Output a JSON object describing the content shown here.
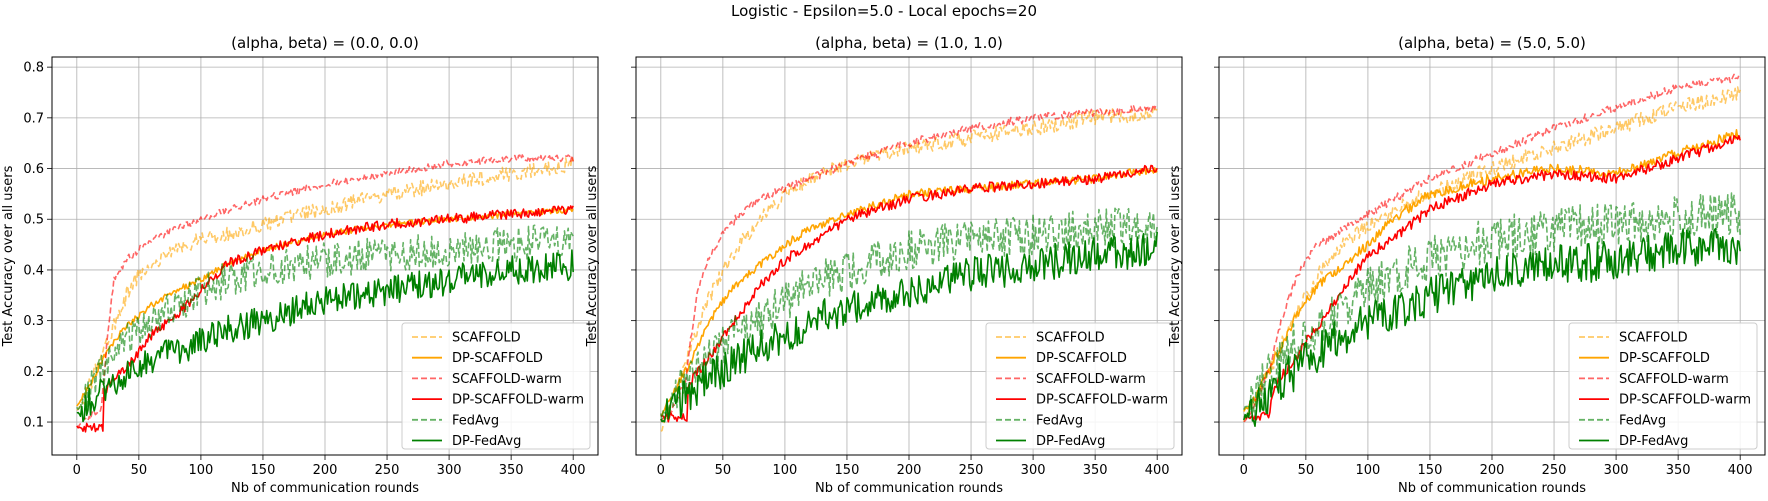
{
  "suptitle": "Logistic - Epsilon=5.0 - Local epochs=20",
  "styles": {
    "SCAFFOLD": {
      "color": "#ffa500",
      "dash": true,
      "opacity": 0.6
    },
    "DP-SCAFFOLD": {
      "color": "#ffa500",
      "dash": false,
      "opacity": 1
    },
    "SCAFFOLD-warm": {
      "color": "#ff0000",
      "dash": true,
      "opacity": 0.6
    },
    "DP-SCAFFOLD-warm": {
      "color": "#ff0000",
      "dash": false,
      "opacity": 1
    },
    "FedAvg": {
      "color": "#008000",
      "dash": true,
      "opacity": 0.6
    },
    "DP-FedAvg": {
      "color": "#008000",
      "dash": false,
      "opacity": 1
    }
  },
  "chart_data": [
    {
      "type": "line",
      "title": "(alpha, beta) = (0.0, 0.0)",
      "xlabel": "Nb of communication rounds",
      "ylabel": "Test Accuracy over all users",
      "xlim": [
        -20,
        420
      ],
      "ylim": [
        0.035,
        0.82
      ],
      "xticks": [
        0,
        50,
        100,
        150,
        200,
        250,
        300,
        350,
        400
      ],
      "yticks": [
        0.1,
        0.2,
        0.3,
        0.4,
        0.5,
        0.6,
        0.7,
        0.8
      ],
      "grid": true,
      "legend": "lower right",
      "series": [
        {
          "name": "SCAFFOLD",
          "x": [
            0,
            10,
            20,
            30,
            40,
            50,
            60,
            80,
            100,
            120,
            150,
            200,
            250,
            300,
            350,
            400
          ],
          "y": [
            0.12,
            0.17,
            0.23,
            0.29,
            0.35,
            0.39,
            0.41,
            0.44,
            0.46,
            0.47,
            0.49,
            0.52,
            0.55,
            0.57,
            0.59,
            0.61
          ],
          "noise": 0.015
        },
        {
          "name": "DP-SCAFFOLD",
          "x": [
            0,
            10,
            20,
            30,
            40,
            50,
            60,
            80,
            100,
            120,
            150,
            200,
            250,
            300,
            350,
            400
          ],
          "y": [
            0.13,
            0.17,
            0.22,
            0.26,
            0.29,
            0.31,
            0.33,
            0.36,
            0.38,
            0.41,
            0.44,
            0.47,
            0.49,
            0.5,
            0.51,
            0.52
          ],
          "noise": 0.006
        },
        {
          "name": "SCAFFOLD-warm",
          "x": [
            0,
            10,
            20,
            25,
            30,
            40,
            50,
            60,
            80,
            100,
            150,
            200,
            250,
            300,
            350,
            400
          ],
          "y": [
            0.09,
            0.11,
            0.13,
            0.28,
            0.38,
            0.42,
            0.44,
            0.46,
            0.48,
            0.5,
            0.54,
            0.57,
            0.59,
            0.61,
            0.62,
            0.62
          ],
          "noise": 0.007
        },
        {
          "name": "DP-SCAFFOLD-warm",
          "x": [
            0,
            21,
            22,
            30,
            40,
            50,
            60,
            80,
            100,
            120,
            150,
            200,
            250,
            300,
            350,
            400
          ],
          "y": [
            0.09,
            0.09,
            0.16,
            0.19,
            0.21,
            0.24,
            0.27,
            0.31,
            0.36,
            0.41,
            0.44,
            0.47,
            0.49,
            0.5,
            0.51,
            0.52
          ],
          "noise": 0.01
        },
        {
          "name": "FedAvg",
          "x": [
            0,
            10,
            20,
            30,
            40,
            50,
            60,
            80,
            100,
            120,
            150,
            200,
            250,
            300,
            350,
            400
          ],
          "y": [
            0.12,
            0.16,
            0.2,
            0.23,
            0.26,
            0.28,
            0.3,
            0.33,
            0.36,
            0.38,
            0.4,
            0.42,
            0.43,
            0.44,
            0.45,
            0.46
          ],
          "noise": 0.035
        },
        {
          "name": "DP-FedAvg",
          "x": [
            0,
            10,
            20,
            30,
            40,
            50,
            60,
            80,
            100,
            120,
            150,
            200,
            250,
            300,
            350,
            400
          ],
          "y": [
            0.11,
            0.14,
            0.16,
            0.18,
            0.2,
            0.21,
            0.22,
            0.24,
            0.26,
            0.28,
            0.3,
            0.34,
            0.36,
            0.38,
            0.4,
            0.41
          ],
          "noise": 0.03
        }
      ]
    },
    {
      "type": "line",
      "title": "(alpha, beta) = (1.0, 1.0)",
      "xlabel": "Nb of communication rounds",
      "ylabel": "Test Accuracy over all users",
      "xlim": [
        -20,
        420
      ],
      "ylim": [
        0.035,
        0.82
      ],
      "xticks": [
        0,
        50,
        100,
        150,
        200,
        250,
        300,
        350,
        400
      ],
      "grid": true,
      "legend": "lower right",
      "series": [
        {
          "name": "SCAFFOLD",
          "x": [
            0,
            10,
            20,
            30,
            40,
            50,
            60,
            80,
            100,
            120,
            150,
            200,
            250,
            300,
            350,
            400
          ],
          "y": [
            0.08,
            0.15,
            0.22,
            0.29,
            0.35,
            0.4,
            0.44,
            0.5,
            0.55,
            0.58,
            0.61,
            0.64,
            0.66,
            0.68,
            0.7,
            0.71
          ],
          "noise": 0.015
        },
        {
          "name": "DP-SCAFFOLD",
          "x": [
            0,
            10,
            20,
            30,
            40,
            50,
            60,
            80,
            100,
            120,
            150,
            200,
            250,
            300,
            350,
            400
          ],
          "y": [
            0.11,
            0.16,
            0.2,
            0.25,
            0.3,
            0.34,
            0.37,
            0.41,
            0.45,
            0.48,
            0.51,
            0.55,
            0.56,
            0.57,
            0.58,
            0.6
          ],
          "noise": 0.008
        },
        {
          "name": "SCAFFOLD-warm",
          "x": [
            0,
            10,
            20,
            25,
            30,
            40,
            50,
            60,
            80,
            100,
            150,
            200,
            250,
            300,
            350,
            400
          ],
          "y": [
            0.1,
            0.13,
            0.18,
            0.28,
            0.36,
            0.43,
            0.47,
            0.5,
            0.54,
            0.56,
            0.61,
            0.65,
            0.68,
            0.7,
            0.71,
            0.72
          ],
          "noise": 0.008
        },
        {
          "name": "DP-SCAFFOLD-warm",
          "x": [
            0,
            21,
            22,
            30,
            40,
            50,
            60,
            80,
            100,
            120,
            150,
            200,
            250,
            300,
            350,
            400
          ],
          "y": [
            0.11,
            0.11,
            0.17,
            0.2,
            0.23,
            0.27,
            0.3,
            0.37,
            0.42,
            0.45,
            0.5,
            0.54,
            0.56,
            0.57,
            0.58,
            0.6
          ],
          "noise": 0.01
        },
        {
          "name": "FedAvg",
          "x": [
            0,
            10,
            20,
            30,
            40,
            50,
            60,
            80,
            100,
            120,
            150,
            200,
            250,
            300,
            350,
            400
          ],
          "y": [
            0.11,
            0.15,
            0.18,
            0.21,
            0.23,
            0.25,
            0.27,
            0.3,
            0.34,
            0.37,
            0.4,
            0.44,
            0.46,
            0.47,
            0.48,
            0.49
          ],
          "noise": 0.04
        },
        {
          "name": "DP-FedAvg",
          "x": [
            0,
            10,
            20,
            30,
            40,
            50,
            60,
            80,
            100,
            120,
            150,
            200,
            250,
            300,
            350,
            400
          ],
          "y": [
            0.1,
            0.13,
            0.15,
            0.17,
            0.19,
            0.2,
            0.22,
            0.25,
            0.27,
            0.3,
            0.32,
            0.36,
            0.39,
            0.41,
            0.43,
            0.44
          ],
          "noise": 0.035
        }
      ]
    },
    {
      "type": "line",
      "title": "(alpha, beta) = (5.0, 5.0)",
      "xlabel": "Nb of communication rounds",
      "ylabel": "Test Accuracy over all users",
      "xlim": [
        -20,
        420
      ],
      "ylim": [
        0.035,
        0.82
      ],
      "xticks": [
        0,
        50,
        100,
        150,
        200,
        250,
        300,
        350,
        400
      ],
      "grid": true,
      "legend": "lower right",
      "series": [
        {
          "name": "SCAFFOLD",
          "x": [
            0,
            10,
            20,
            30,
            40,
            50,
            60,
            80,
            100,
            120,
            150,
            200,
            250,
            300,
            350,
            400
          ],
          "y": [
            0.1,
            0.15,
            0.2,
            0.25,
            0.3,
            0.35,
            0.39,
            0.45,
            0.49,
            0.52,
            0.55,
            0.6,
            0.64,
            0.68,
            0.72,
            0.75
          ],
          "noise": 0.015
        },
        {
          "name": "DP-SCAFFOLD",
          "x": [
            0,
            10,
            20,
            30,
            40,
            50,
            60,
            80,
            100,
            120,
            150,
            200,
            250,
            300,
            350,
            400
          ],
          "y": [
            0.12,
            0.15,
            0.2,
            0.25,
            0.3,
            0.34,
            0.37,
            0.41,
            0.45,
            0.5,
            0.55,
            0.58,
            0.6,
            0.59,
            0.63,
            0.67
          ],
          "noise": 0.01
        },
        {
          "name": "SCAFFOLD-warm",
          "x": [
            0,
            10,
            20,
            25,
            30,
            40,
            50,
            60,
            80,
            100,
            150,
            200,
            250,
            300,
            350,
            400
          ],
          "y": [
            0.1,
            0.14,
            0.2,
            0.25,
            0.3,
            0.37,
            0.42,
            0.45,
            0.48,
            0.51,
            0.58,
            0.63,
            0.68,
            0.72,
            0.76,
            0.78
          ],
          "noise": 0.008
        },
        {
          "name": "DP-SCAFFOLD-warm",
          "x": [
            0,
            21,
            22,
            30,
            40,
            50,
            60,
            80,
            100,
            120,
            150,
            200,
            250,
            300,
            350,
            400
          ],
          "y": [
            0.11,
            0.11,
            0.15,
            0.19,
            0.22,
            0.26,
            0.29,
            0.36,
            0.43,
            0.46,
            0.52,
            0.57,
            0.59,
            0.58,
            0.62,
            0.66
          ],
          "noise": 0.01
        },
        {
          "name": "FedAvg",
          "x": [
            0,
            10,
            20,
            30,
            40,
            50,
            60,
            80,
            100,
            120,
            150,
            200,
            250,
            300,
            350,
            400
          ],
          "y": [
            0.12,
            0.16,
            0.19,
            0.22,
            0.25,
            0.27,
            0.29,
            0.32,
            0.36,
            0.39,
            0.42,
            0.46,
            0.48,
            0.49,
            0.5,
            0.51
          ],
          "noise": 0.045
        },
        {
          "name": "DP-FedAvg",
          "x": [
            0,
            10,
            20,
            30,
            40,
            50,
            60,
            80,
            100,
            120,
            150,
            200,
            250,
            300,
            350,
            400
          ],
          "y": [
            0.1,
            0.13,
            0.16,
            0.18,
            0.2,
            0.22,
            0.24,
            0.27,
            0.3,
            0.32,
            0.35,
            0.39,
            0.41,
            0.42,
            0.44,
            0.45
          ],
          "noise": 0.04
        }
      ]
    }
  ]
}
